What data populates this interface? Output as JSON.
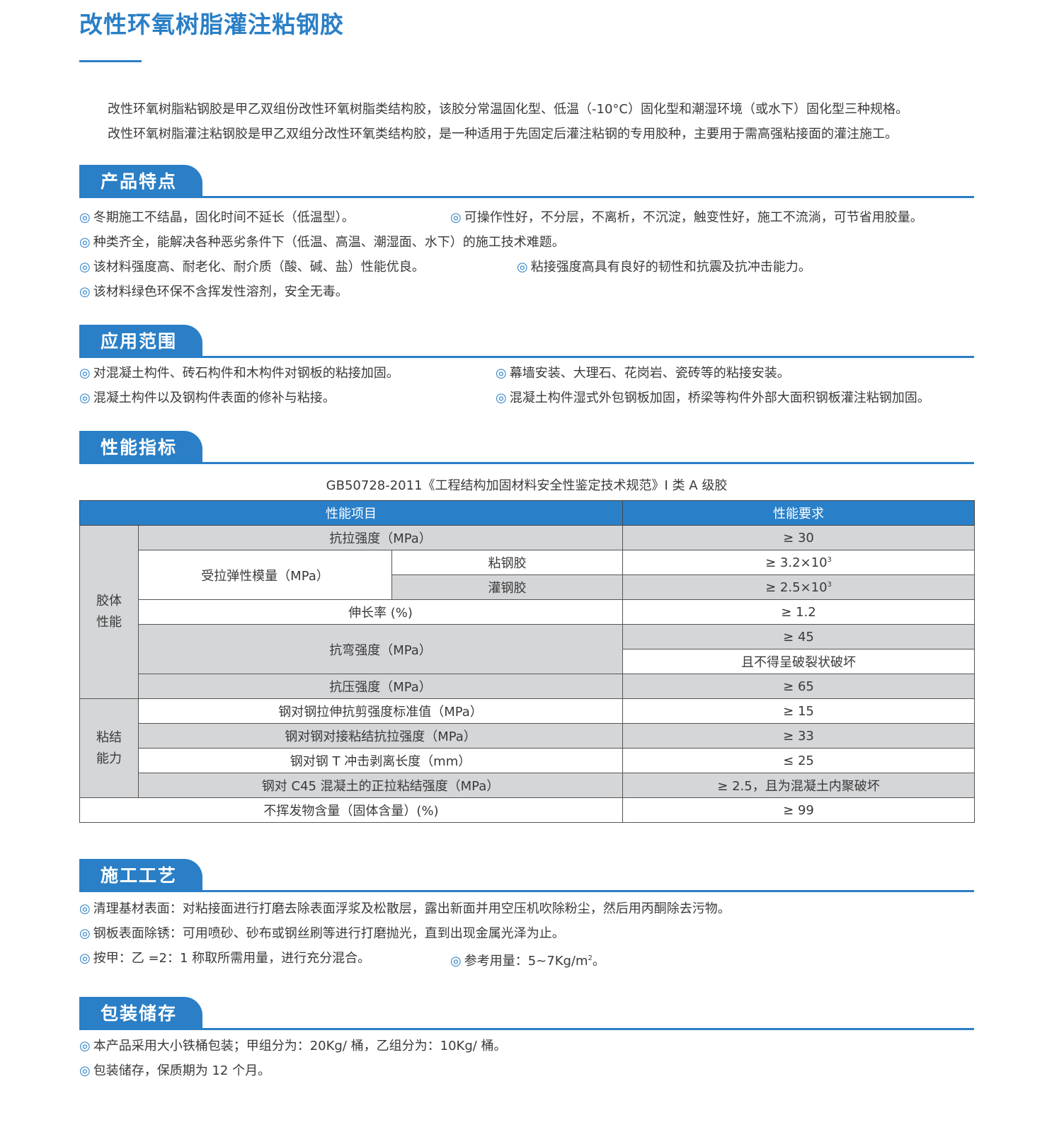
{
  "title": "改性环氧树脂灌注粘钢胶",
  "intro": [
    "改性环氧树脂粘钢胶是甲乙双组份改性环氧树脂类结构胶，该胶分常温固化型、低温（-10°C）固化型和潮湿环境（或水下）固化型三种规格。",
    "改性环氧树脂灌注粘钢胶是甲乙双组分改性环氧类结构胶，是一种适用于先固定后灌注粘钢的专用胶种，主要用于需高强粘接面的灌注施工。"
  ],
  "bullet": "◎",
  "colors": {
    "accent": "#2a7fc6",
    "table_grey": "#d5d6d8"
  },
  "features": {
    "heading": "产品特点",
    "items": [
      "冬期施工不结晶，固化时间不延长（低温型）。",
      "可操作性好，不分层，不离析，不沉淀，触变性好，施工不流淌，可节省用胶量。",
      "种类齐全，能解决各种恶劣条件下（低温、高温、潮湿面、水下）的施工技术难题。",
      "该材料强度高、耐老化、耐介质（酸、碱、盐）性能优良。",
      "粘接强度高具有良好的韧性和抗震及抗冲击能力。",
      "该材料绿色环保不含挥发性溶剂，安全无毒。"
    ]
  },
  "applications": {
    "heading": "应用范围",
    "items": [
      "对混凝土构件、砖石构件和木构件对钢板的粘接加固。",
      "幕墙安装、大理石、花岗岩、瓷砖等的粘接安装。",
      "混凝土构件以及钢构件表面的修补与粘接。",
      "混凝土构件湿式外包钢板加固，桥梁等构件外部大面积钢板灌注粘钢加固。"
    ]
  },
  "performance": {
    "heading": "性能指标",
    "caption": "GB50728-2011《工程结构加固材料安全性鉴定技术规范》I 类 A 级胶",
    "headers": [
      "性能项目",
      "性能要求"
    ],
    "group1": "胶体性能",
    "group2": "粘结能力",
    "r1": [
      "抗拉强度（MPa）",
      "≥ 30"
    ],
    "r2": [
      "受拉弹性模量（MPa）",
      "粘钢胶",
      "≥ 3.2×10",
      "3"
    ],
    "r3": [
      "灌钢胶",
      "≥ 2.5×10",
      "3"
    ],
    "r4": [
      "伸长率 (%)",
      "≥ 1.2"
    ],
    "r5": [
      "抗弯强度（MPa）",
      "≥ 45",
      "且不得呈破裂状破坏"
    ],
    "r6": [
      "抗压强度（MPa）",
      "≥ 65"
    ],
    "r7": [
      "钢对钢拉伸抗剪强度标准值（MPa）",
      "≥ 15"
    ],
    "r8": [
      "钢对钢对接粘结抗拉强度（MPa）",
      "≥ 33"
    ],
    "r9": [
      "钢对钢 T 冲击剥离长度（mm）",
      "≤ 25"
    ],
    "r10": [
      "钢对 C45 混凝土的正拉粘结强度（MPa）",
      "≥ 2.5，且为混凝土内聚破坏"
    ],
    "r11": [
      "不挥发物含量（固体含量）(%)",
      "≥ 99"
    ]
  },
  "process": {
    "heading": "施工工艺",
    "items": [
      "清理基材表面：对粘接面进行打磨去除表面浮浆及松散层，露出新面并用空压机吹除粉尘，然后用丙酮除去污物。",
      "钢板表面除锈：可用喷砂、砂布或钢丝刷等进行打磨抛光，直到出现金属光泽为止。",
      "按甲：乙 =2：1 称取所需用量，进行充分混合。"
    ],
    "usage": "参考用量：5~7Kg/m",
    "usage_sup": "2",
    "usage_end": "。"
  },
  "storage": {
    "heading": "包装储存",
    "items": [
      "本产品采用大小铁桶包装；甲组分为：20Kg/ 桶，乙组分为：10Kg/ 桶。",
      "包装储存，保质期为 12 个月。"
    ]
  }
}
